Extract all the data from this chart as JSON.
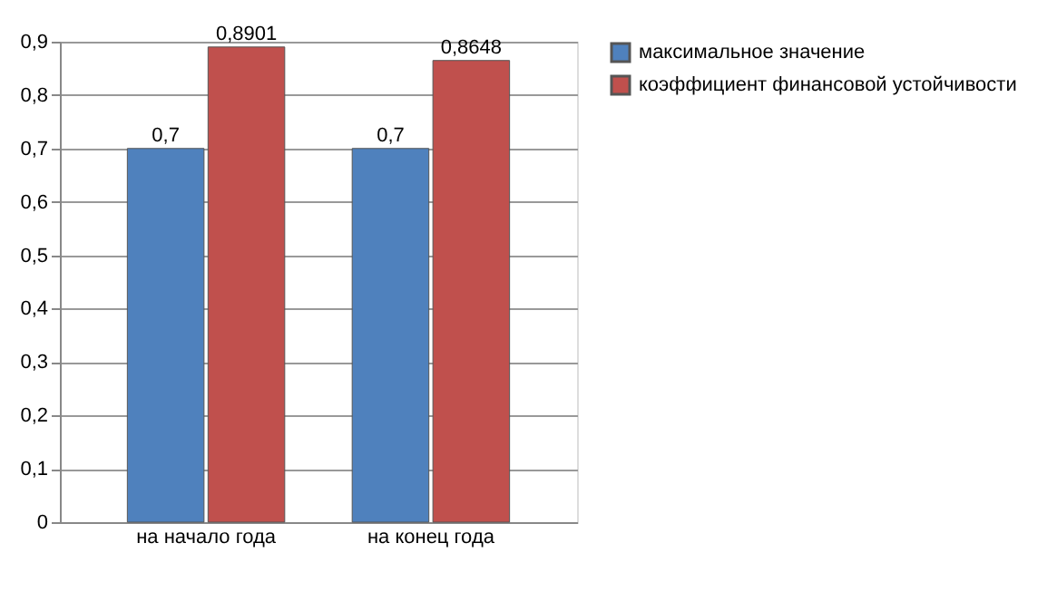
{
  "chart_data": {
    "type": "bar",
    "categories": [
      "на начало года",
      "на конец года"
    ],
    "series": [
      {
        "name": "максимальное значение",
        "color": "#4f81bd",
        "values": [
          0.7,
          0.7
        ],
        "value_labels": [
          "0,7",
          "0,7"
        ]
      },
      {
        "name": "коэффициент финансовой устойчивости",
        "color": "#c0504d",
        "values": [
          0.8901,
          0.8648
        ],
        "value_labels": [
          "0,8901",
          "0,8648"
        ]
      }
    ],
    "ylim": [
      0,
      0.9
    ],
    "yticks": [
      {
        "value": 0,
        "label": "0"
      },
      {
        "value": 0.1,
        "label": "0,1"
      },
      {
        "value": 0.2,
        "label": "0,2"
      },
      {
        "value": 0.3,
        "label": "0,3"
      },
      {
        "value": 0.4,
        "label": "0,4"
      },
      {
        "value": 0.5,
        "label": "0,5"
      },
      {
        "value": 0.6,
        "label": "0,6"
      },
      {
        "value": 0.7,
        "label": "0,7"
      },
      {
        "value": 0.8,
        "label": "0,8"
      },
      {
        "value": 0.9,
        "label": "0,9"
      }
    ],
    "grid": "y",
    "legend": "right"
  }
}
